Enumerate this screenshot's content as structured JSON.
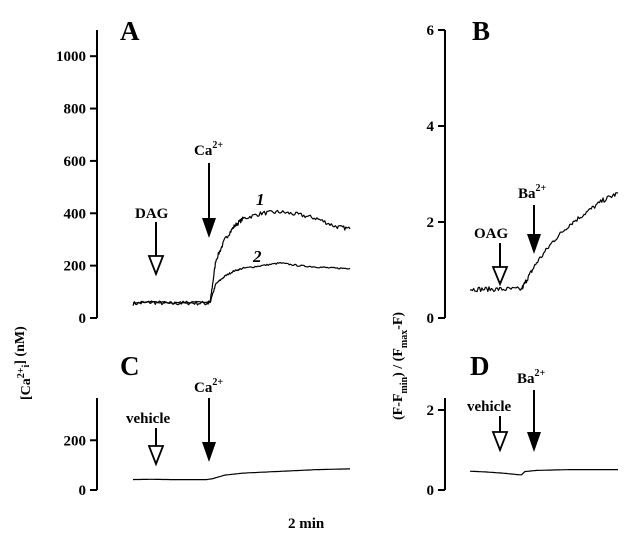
{
  "labels": {
    "panel_a": "A",
    "panel_b": "B",
    "panel_c": "C",
    "panel_d": "D",
    "y_left_prefix": "[Ca",
    "y_left_sup": "2+",
    "y_left_sub": "i",
    "y_left_suffix": "] (nM)",
    "y_right_1": "(F-F",
    "y_right_sub1": "min",
    "y_right_2": ") / (F",
    "y_right_sub2": "max",
    "y_right_3": "-F)",
    "time_scale": "2 min"
  },
  "annotations": {
    "dag": "DAG",
    "oag": "OAG",
    "vehicle": "vehicle",
    "ca": "Ca",
    "ba": "Ba",
    "ion_charge": "2+",
    "curve_1": "1",
    "curve_2": "2"
  },
  "chart_data": [
    {
      "panel": "A",
      "type": "line",
      "xlabel": "",
      "ylabel": "[Ca2+]i (nM)",
      "ylim": [
        0,
        1100
      ],
      "yticks": [
        0,
        200,
        400,
        600,
        800,
        1000
      ],
      "events": [
        {
          "label": "DAG",
          "time_min": 2.4,
          "style": "open-arrow"
        },
        {
          "label": "Ca2+",
          "time_min": 4.2,
          "style": "filled-arrow"
        }
      ],
      "series": [
        {
          "name": "1",
          "x": [
            0,
            1.0,
            2.0,
            3.0,
            4.0,
            4.2,
            4.5,
            5.0,
            5.5,
            6.0,
            7.0,
            8.0,
            9.0,
            10.0,
            11.0,
            11.8
          ],
          "y": [
            55,
            60,
            55,
            58,
            56,
            60,
            220,
            300,
            350,
            380,
            400,
            405,
            395,
            380,
            350,
            340
          ]
        },
        {
          "name": "2",
          "x": [
            0,
            1.0,
            2.0,
            3.0,
            4.0,
            4.2,
            4.5,
            5.0,
            5.5,
            6.0,
            7.0,
            8.0,
            9.0,
            10.0,
            11.0,
            11.8
          ],
          "y": [
            60,
            62,
            58,
            60,
            60,
            60,
            130,
            160,
            180,
            190,
            200,
            210,
            200,
            195,
            190,
            190
          ]
        }
      ]
    },
    {
      "panel": "B",
      "type": "line",
      "xlabel": "",
      "ylabel": "(F-Fmin) / (Fmax-F)",
      "ylim": [
        0,
        6
      ],
      "yticks": [
        0,
        2,
        4,
        6
      ],
      "events": [
        {
          "label": "OAG",
          "time_min": 1.8,
          "style": "open-arrow"
        },
        {
          "label": "Ba2+",
          "time_min": 3.1,
          "style": "filled-arrow"
        }
      ],
      "series": [
        {
          "name": "",
          "x": [
            0,
            1.0,
            2.0,
            3.1,
            3.5,
            4.0,
            5.0,
            6.0,
            7.0,
            8.0,
            8.9
          ],
          "y": [
            0.6,
            0.6,
            0.6,
            0.6,
            0.85,
            1.15,
            1.6,
            1.95,
            2.2,
            2.45,
            2.6
          ]
        }
      ]
    },
    {
      "panel": "C",
      "type": "line",
      "xlabel": "",
      "ylabel": "",
      "ylim": [
        0,
        370
      ],
      "yticks": [
        0,
        200
      ],
      "events": [
        {
          "label": "vehicle",
          "time_min": 2.4,
          "style": "open-arrow"
        },
        {
          "label": "Ca2+",
          "time_min": 4.2,
          "style": "filled-arrow"
        }
      ],
      "series": [
        {
          "name": "",
          "x": [
            0,
            1.0,
            2.0,
            3.0,
            4.0,
            4.3,
            5.0,
            6.0,
            8.0,
            10.0,
            11.8
          ],
          "y": [
            42,
            43,
            42,
            42,
            42,
            45,
            60,
            68,
            75,
            82,
            85
          ]
        }
      ]
    },
    {
      "panel": "D",
      "type": "line",
      "xlabel": "",
      "ylabel": "",
      "ylim": [
        0,
        2.3
      ],
      "yticks": [
        0,
        2
      ],
      "events": [
        {
          "label": "vehicle",
          "time_min": 1.8,
          "style": "open-arrow"
        },
        {
          "label": "Ba2+",
          "time_min": 3.1,
          "style": "filled-arrow"
        }
      ],
      "series": [
        {
          "name": "",
          "x": [
            0,
            1.0,
            2.0,
            3.0,
            3.1,
            3.3,
            4.0,
            5.0,
            6.0,
            7.0,
            8.0,
            8.9
          ],
          "y": [
            0.47,
            0.45,
            0.42,
            0.38,
            0.38,
            0.46,
            0.49,
            0.5,
            0.51,
            0.51,
            0.51,
            0.51
          ]
        }
      ]
    }
  ]
}
